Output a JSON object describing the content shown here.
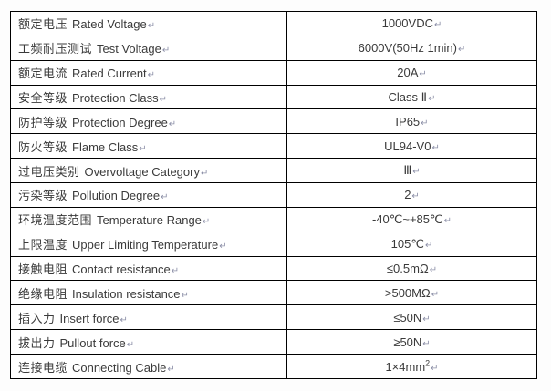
{
  "document": {
    "type": "specification-table",
    "paragraph_mark": "↵",
    "colors": {
      "border": "#000000",
      "text": "#3a3a3a",
      "paragraph_mark": "#8d90a8",
      "background": "#ffffff"
    },
    "table": {
      "columns": [
        "parameter",
        "value"
      ],
      "rows": [
        {
          "label_zh": "额定电压",
          "label_en": "Rated Voltage",
          "value": "1000VDC"
        },
        {
          "label_zh": "工频耐压测试",
          "label_en": "Test Voltage",
          "value": "6000V(50Hz 1min)"
        },
        {
          "label_zh": "额定电流",
          "label_en": "Rated Current",
          "value": "20A"
        },
        {
          "label_zh": "安全等级",
          "label_en": "Protection Class",
          "value": "Class Ⅱ"
        },
        {
          "label_zh": "防护等级",
          "label_en": "Protection Degree",
          "value": "IP65"
        },
        {
          "label_zh": "防火等级",
          "label_en": "Flame Class",
          "value": "UL94-V0"
        },
        {
          "label_zh": "过电压类别",
          "label_en": "Overvoltage Category",
          "value": "Ⅲ"
        },
        {
          "label_zh": "污染等级",
          "label_en": "Pollution Degree",
          "value": "2"
        },
        {
          "label_zh": "环境温度范围",
          "label_en": "Temperature Range",
          "value": "-40℃~+85℃"
        },
        {
          "label_zh": "上限温度",
          "label_en": "Upper Limiting Temperature",
          "value": "105℃"
        },
        {
          "label_zh": "接触电阻",
          "label_en": "Contact resistance",
          "value": "≤0.5mΩ"
        },
        {
          "label_zh": "绝缘电阻",
          "label_en": "Insulation resistance",
          "value": ">500MΩ"
        },
        {
          "label_zh": "插入力",
          "label_en": "Insert force",
          "value": "≤50N"
        },
        {
          "label_zh": "拔出力",
          "label_en": "Pullout force",
          "value": "≥50N"
        },
        {
          "label_zh": "连接电缆",
          "label_en": "Connecting Cable",
          "value": "1×4mm²"
        }
      ]
    }
  }
}
